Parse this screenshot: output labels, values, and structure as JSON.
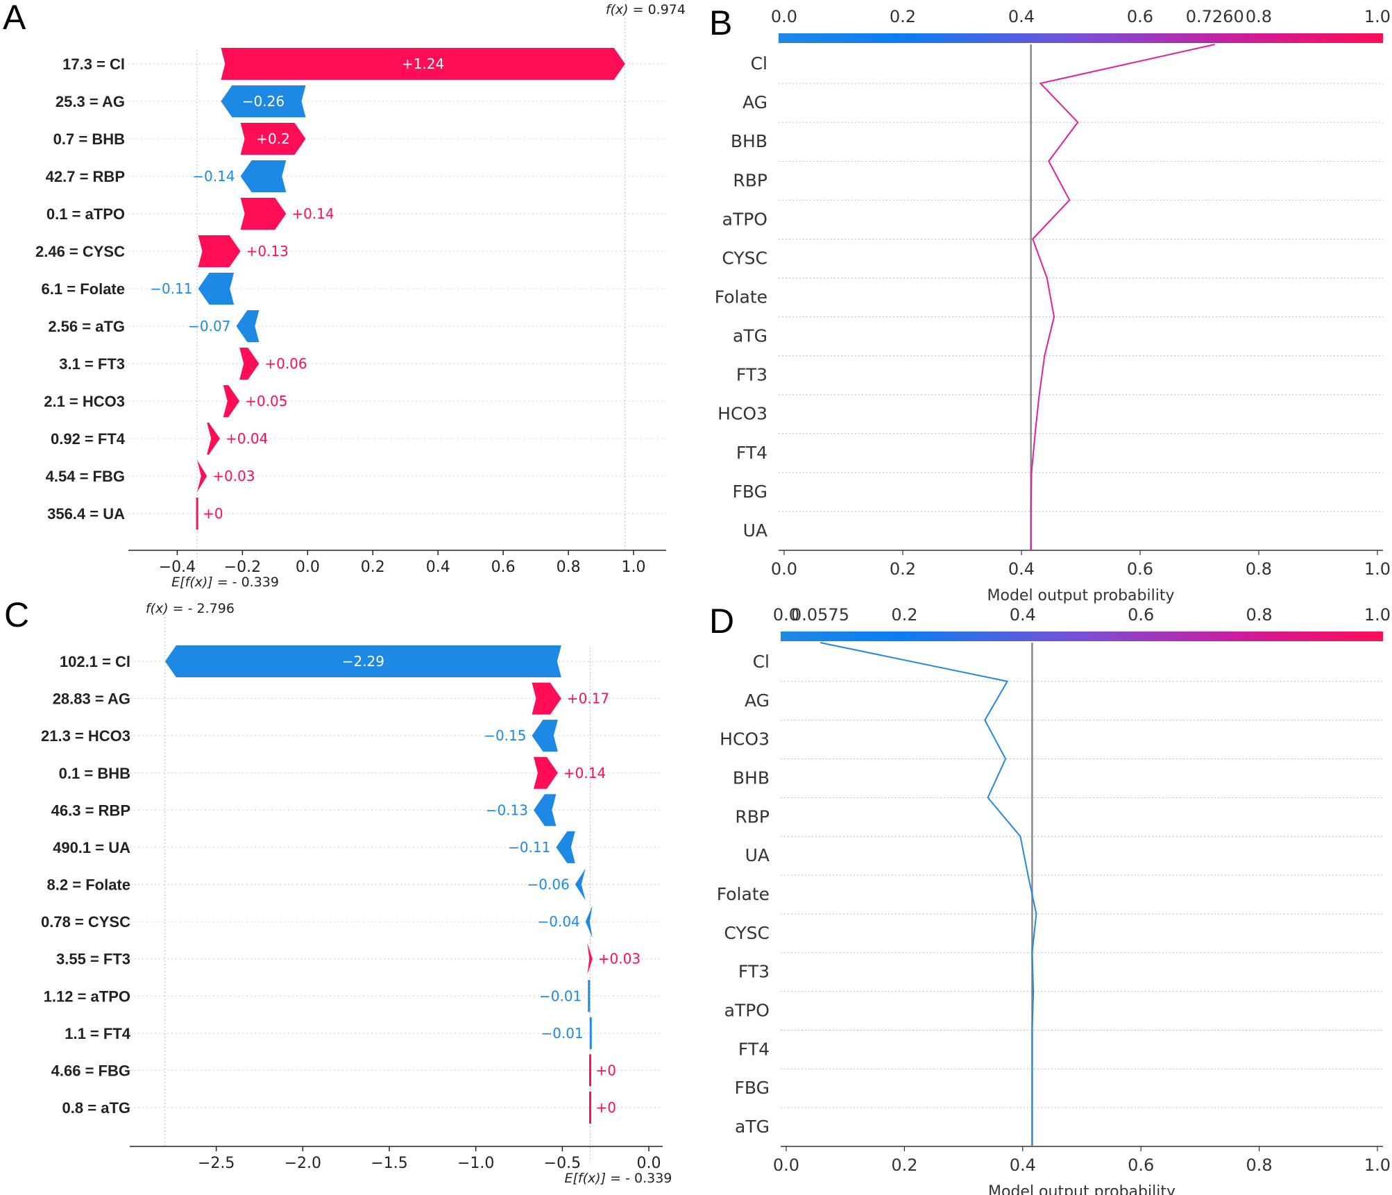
{
  "colors": {
    "pos": "#ff0d57",
    "neg": "#1e88e5",
    "axis": "#222222",
    "grid": "#cccccc",
    "base_line": "#888888"
  },
  "chart_data": [
    {
      "panel": "A",
      "type": "waterfall",
      "annotation_top": {
        "label": "f(x)",
        "value_text": "= 0.974",
        "value": 0.974
      },
      "annotation_bottom": {
        "label": "E[f(x)]",
        "value_text": "= - 0.339",
        "value": -0.339
      },
      "xlim": [
        -0.55,
        1.1
      ],
      "xticks": [
        -0.4,
        -0.2,
        0.0,
        0.2,
        0.4,
        0.6,
        0.8,
        1.0
      ],
      "xtick_labels": [
        "−0.4",
        "−0.2",
        "0.0",
        "0.2",
        "0.4",
        "0.6",
        "0.8",
        "1.0"
      ],
      "rows": [
        {
          "label": "17.3 = Cl",
          "value": 1.24,
          "text": "+1.24",
          "start": -0.266
        },
        {
          "label": "25.3 = AG",
          "value": -0.26,
          "text": "−0.26",
          "start": -0.006
        },
        {
          "label": "0.7 = BHB",
          "value": 0.2,
          "text": "+0.2",
          "start": -0.206
        },
        {
          "label": "42.7 = RBP",
          "value": -0.14,
          "text": "−0.14",
          "start": -0.066
        },
        {
          "label": "0.1 = aTPO",
          "value": 0.14,
          "text": "+0.14",
          "start": -0.206
        },
        {
          "label": "2.46 = CYSC",
          "value": 0.13,
          "text": "+0.13",
          "start": -0.336
        },
        {
          "label": "6.1 = Folate",
          "value": -0.11,
          "text": "−0.11",
          "start": -0.226
        },
        {
          "label": "2.56 = aTG",
          "value": -0.07,
          "text": "−0.07",
          "start": -0.149
        },
        {
          "label": "3.1 = FT3",
          "value": 0.06,
          "text": "+0.06",
          "start": -0.209
        },
        {
          "label": "2.1 = HCO3",
          "value": 0.05,
          "text": "+0.05",
          "start": -0.259
        },
        {
          "label": "0.92 = FT4",
          "value": 0.04,
          "text": "+0.04",
          "start": -0.309
        },
        {
          "label": "4.54 = FBG",
          "value": 0.03,
          "text": "+0.03",
          "start": -0.339
        },
        {
          "label": "356.4 = UA",
          "value": 0.0,
          "text": "+0",
          "start": -0.339
        }
      ]
    },
    {
      "panel": "B",
      "type": "line",
      "title_value_text": "0.7260",
      "xlabel": "Model output probability",
      "xlim": [
        0.0,
        1.0
      ],
      "xticks": [
        0.0,
        0.2,
        0.4,
        0.6,
        0.8,
        1.0
      ],
      "xtick_labels": [
        "0.0",
        "0.2",
        "0.4",
        "0.6",
        "0.8",
        "1.0"
      ],
      "base_value": 0.416,
      "final_value": 0.726,
      "line_color": "#e0209a",
      "features": [
        "Cl",
        "AG",
        "BHB",
        "RBP",
        "aTPO",
        "CYSC",
        "Folate",
        "aTG",
        "FT3",
        "HCO3",
        "FT4",
        "FBG",
        "UA"
      ],
      "values": [
        0.726,
        0.432,
        0.495,
        0.446,
        0.481,
        0.419,
        0.443,
        0.455,
        0.439,
        0.43,
        0.423,
        0.417,
        0.416,
        0.416
      ]
    },
    {
      "panel": "C",
      "type": "waterfall",
      "annotation_top": {
        "label": "f(x)",
        "value_text": "= - 2.796",
        "value": -2.796
      },
      "annotation_bottom": {
        "label": "E[f(x)]",
        "value_text": "= - 0.339",
        "value": -0.339
      },
      "xlim": [
        -3.0,
        0.08
      ],
      "xticks": [
        -2.5,
        -2.0,
        -1.5,
        -1.0,
        -0.5,
        0.0
      ],
      "xtick_labels": [
        "−2.5",
        "−2.0",
        "−1.5",
        "−1.0",
        "−0.5",
        "0.0"
      ],
      "rows": [
        {
          "label": "102.1 = Cl",
          "value": -2.29,
          "text": "−2.29",
          "start": -0.506
        },
        {
          "label": "28.83 = AG",
          "value": 0.17,
          "text": "+0.17",
          "start": -0.676
        },
        {
          "label": "21.3 = HCO3",
          "value": -0.15,
          "text": "−0.15",
          "start": -0.526
        },
        {
          "label": "0.1 = BHB",
          "value": 0.14,
          "text": "+0.14",
          "start": -0.666
        },
        {
          "label": "46.3 = RBP",
          "value": -0.13,
          "text": "−0.13",
          "start": -0.536
        },
        {
          "label": "490.1 = UA",
          "value": -0.11,
          "text": "−0.11",
          "start": -0.426
        },
        {
          "label": "8.2 = Folate",
          "value": -0.06,
          "text": "−0.06",
          "start": -0.366
        },
        {
          "label": "0.78 = CYSC",
          "value": -0.04,
          "text": "−0.04",
          "start": -0.326
        },
        {
          "label": "3.55 = FT3",
          "value": 0.03,
          "text": "+0.03",
          "start": -0.356
        },
        {
          "label": "1.12 = aTPO",
          "value": -0.01,
          "text": "−0.01",
          "start": -0.346
        },
        {
          "label": "1.1 = FT4",
          "value": -0.01,
          "text": "−0.01",
          "start": -0.336
        },
        {
          "label": "4.66 = FBG",
          "value": 0.0,
          "text": "+0",
          "start": -0.339
        },
        {
          "label": "0.8 = aTG",
          "value": 0.0,
          "text": "+0",
          "start": -0.339
        }
      ]
    },
    {
      "panel": "D",
      "type": "line",
      "title_value_text": "0.0575",
      "xlabel": "Model output probability",
      "xlim": [
        0.0,
        1.0
      ],
      "xticks": [
        0.0,
        0.2,
        0.4,
        0.6,
        0.8,
        1.0
      ],
      "xtick_labels": [
        "0.0",
        "0.2",
        "0.4",
        "0.6",
        "0.8",
        "1.0"
      ],
      "base_value": 0.416,
      "final_value": 0.0575,
      "line_color": "#1e88e5",
      "features": [
        "Cl",
        "AG",
        "HCO3",
        "BHB",
        "RBP",
        "UA",
        "Folate",
        "CYSC",
        "FT3",
        "aTPO",
        "FT4",
        "FBG",
        "aTG"
      ],
      "values": [
        0.0575,
        0.374,
        0.336,
        0.371,
        0.341,
        0.396,
        0.409,
        0.423,
        0.416,
        0.418,
        0.416,
        0.416,
        0.416,
        0.416
      ]
    }
  ]
}
